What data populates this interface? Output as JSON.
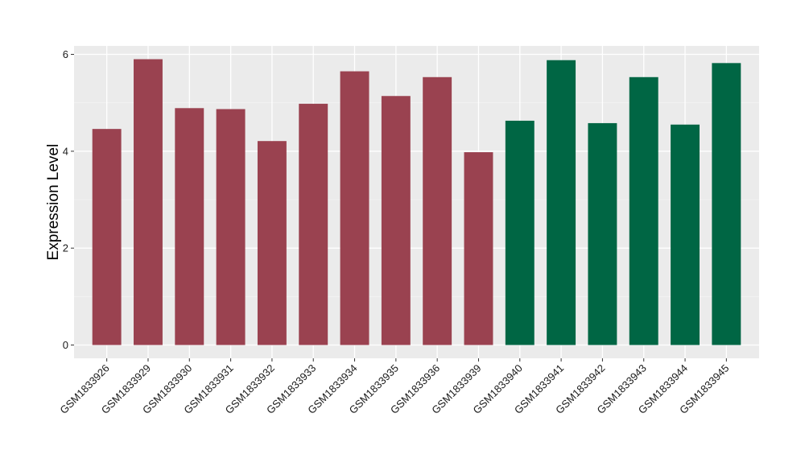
{
  "chart_data": {
    "type": "bar",
    "xlabel": "",
    "ylabel": "Expression Level",
    "ylim": [
      0,
      6.25
    ],
    "yticks": [
      0,
      2,
      4,
      6
    ],
    "grid": true,
    "legend": "none",
    "panel_background": "#EBEBEB",
    "categories": [
      "GSM1833926",
      "GSM1833929",
      "GSM1833930",
      "GSM1833931",
      "GSM1833932",
      "GSM1833933",
      "GSM1833934",
      "GSM1833935",
      "GSM1833936",
      "GSM1833939",
      "GSM1833940",
      "GSM1833941",
      "GSM1833942",
      "GSM1833943",
      "GSM1833944",
      "GSM1833945"
    ],
    "values": [
      4.46,
      5.9,
      4.89,
      4.87,
      4.21,
      4.98,
      5.65,
      5.14,
      5.53,
      3.98,
      4.63,
      5.88,
      4.58,
      5.53,
      4.55,
      5.82
    ],
    "colors": [
      "#9A4250",
      "#9A4250",
      "#9A4250",
      "#9A4250",
      "#9A4250",
      "#9A4250",
      "#9A4250",
      "#9A4250",
      "#9A4250",
      "#9A4250",
      "#006644",
      "#006644",
      "#006644",
      "#006644",
      "#006644",
      "#006644"
    ]
  }
}
